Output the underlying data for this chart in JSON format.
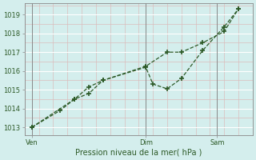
{
  "title": "Pression niveau de la mer( hPa )",
  "bg_color": "#d4eeed",
  "grid_color_white": "#ffffff",
  "grid_color_pink": "#dbbcbc",
  "line_color": "#2d5a27",
  "marker_color": "#2d5a27",
  "ylabel_ticks": [
    1013,
    1014,
    1015,
    1016,
    1017,
    1018,
    1019
  ],
  "ylim": [
    1012.6,
    1019.6
  ],
  "x_day_labels": [
    {
      "label": "Ven",
      "x": 0
    },
    {
      "label": "Dim",
      "x": 8
    },
    {
      "label": "Sam",
      "x": 13
    }
  ],
  "xlim": [
    -0.5,
    15.5
  ],
  "vline_positions": [
    0,
    8,
    13
  ],
  "line1_x": [
    0,
    2,
    3,
    4,
    5,
    8,
    8.5,
    9.5,
    10.5,
    12,
    13.5,
    14.5
  ],
  "line1_y": [
    1013.0,
    1013.9,
    1014.5,
    1015.15,
    1015.5,
    1016.2,
    1015.3,
    1015.05,
    1015.6,
    1017.1,
    1018.35,
    1019.3
  ],
  "line2_x": [
    0,
    3,
    4,
    5,
    8,
    9.5,
    10.5,
    12,
    13.5,
    14.5
  ],
  "line2_y": [
    1013.0,
    1014.5,
    1014.8,
    1015.5,
    1016.25,
    1017.0,
    1017.0,
    1017.5,
    1018.1,
    1019.3
  ],
  "n_grid_v": 16,
  "spine_color": "#888888",
  "tick_label_color": "#2d5a27",
  "xlabel_color": "#2d5a27",
  "tick_fontsize": 6,
  "xlabel_fontsize": 7
}
